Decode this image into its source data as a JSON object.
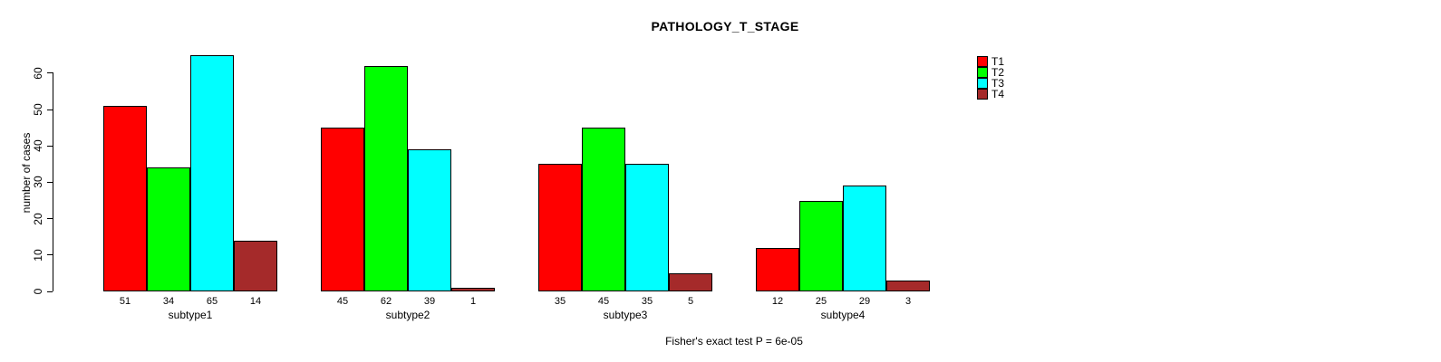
{
  "title": "PATHOLOGY_T_STAGE",
  "chart_data": {
    "type": "bar",
    "title": "PATHOLOGY_T_STAGE",
    "xlabel": "",
    "ylabel": "number of cases",
    "categories": [
      "subtype1",
      "subtype2",
      "subtype3",
      "subtype4"
    ],
    "series": [
      {
        "name": "T1",
        "color": "#FF0000",
        "values": [
          51,
          45,
          35,
          12
        ]
      },
      {
        "name": "T2",
        "color": "#00FF00",
        "values": [
          34,
          62,
          45,
          25
        ]
      },
      {
        "name": "T3",
        "color": "#00FFFF",
        "values": [
          65,
          39,
          35,
          29
        ]
      },
      {
        "name": "T4",
        "color": "#A52A2A",
        "values": [
          14,
          1,
          5,
          3
        ]
      }
    ],
    "ylim": [
      0,
      60
    ],
    "yticks": [
      0,
      10,
      20,
      30,
      40,
      50,
      60
    ],
    "bar_value_labels_shown": true,
    "legend_position": "top-right",
    "legend_entries": [
      "T1",
      "T2",
      "T3",
      "T4"
    ],
    "grid": false,
    "annotation": "Fisher's exact test P = 6e-05"
  }
}
